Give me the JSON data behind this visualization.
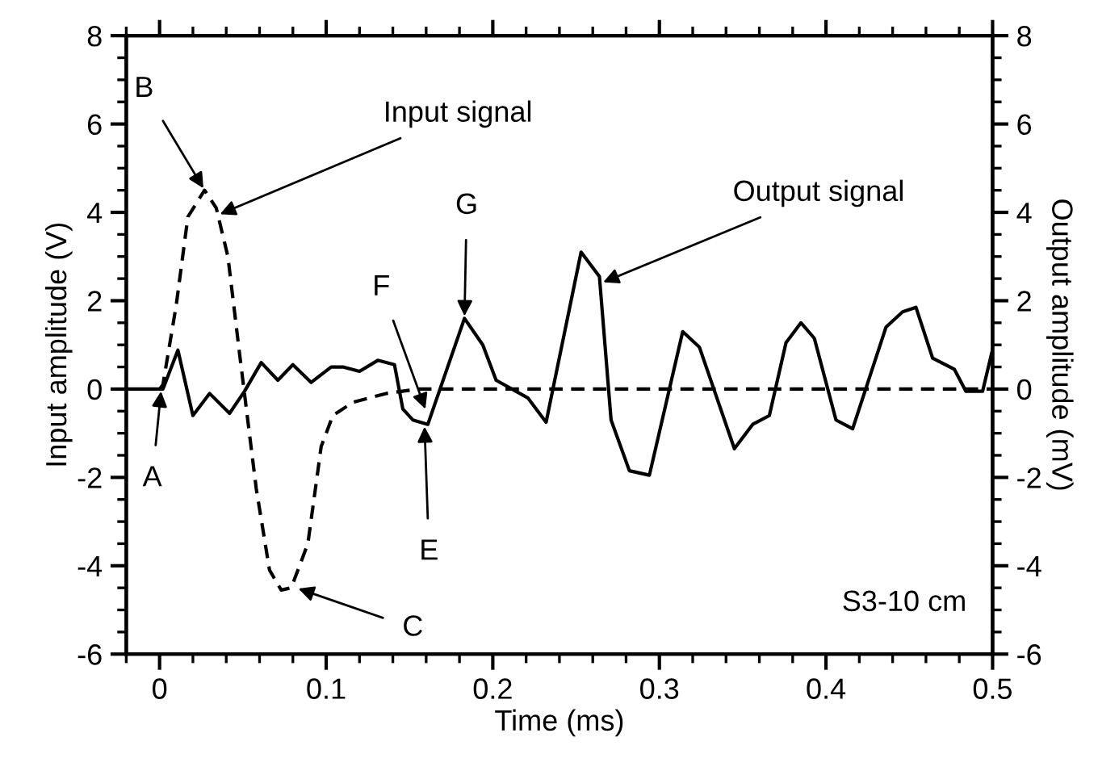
{
  "chart_data": {
    "type": "line",
    "xlabel": "Time (ms)",
    "ylabel": "Input amplitude (V)",
    "y2label": "Output amplitude (mV)",
    "xlim": [
      -0.02,
      0.5
    ],
    "xticks": [
      0,
      0.1,
      0.2,
      0.3,
      0.4,
      0.5
    ],
    "ylim": [
      -6,
      8
    ],
    "yticks": [
      -6,
      -4,
      -2,
      0,
      2,
      4,
      6,
      8
    ],
    "y2lim": [
      -6,
      8
    ],
    "y2ticks": [
      -6,
      -4,
      -2,
      0,
      2,
      4,
      6,
      8
    ],
    "grid": false,
    "legend": false,
    "marker": "none",
    "series": [
      {
        "color": "#000000",
        "line_style": "dashed",
        "x": [
          -0.0,
          0.002,
          0.01,
          0.017,
          0.027,
          0.034,
          0.041,
          0.048,
          0.058,
          0.066,
          0.073,
          0.079,
          0.089,
          0.097,
          0.104,
          0.116,
          0.136,
          0.155,
          0.5
        ],
        "values": [
          0,
          0.1,
          1.9,
          3.9,
          4.5,
          4.1,
          3.0,
          0.8,
          -2.25,
          -4.1,
          -4.55,
          -4.5,
          -3.5,
          -1.3,
          -0.6,
          -0.3,
          -0.1,
          0,
          0
        ]
      },
      {
        "color": "#000000",
        "line_style": "solid",
        "axis": "y2",
        "x": [
          -0.02,
          0.002,
          0.011,
          0.02,
          0.03,
          0.042,
          0.051,
          0.061,
          0.071,
          0.08,
          0.091,
          0.103,
          0.11,
          0.12,
          0.131,
          0.141,
          0.146,
          0.152,
          0.161,
          0.183,
          0.194,
          0.202,
          0.221,
          0.232,
          0.253,
          0.264,
          0.271,
          0.282,
          0.294,
          0.314,
          0.324,
          0.345,
          0.356,
          0.366,
          0.376,
          0.385,
          0.393,
          0.406,
          0.416,
          0.436,
          0.446,
          0.454,
          0.464,
          0.477,
          0.484,
          0.494,
          0.5
        ],
        "values": [
          0,
          0,
          0.88,
          -0.6,
          -0.1,
          -0.55,
          -0.05,
          0.6,
          0.2,
          0.55,
          0.15,
          0.5,
          0.5,
          0.4,
          0.65,
          0.55,
          -0.45,
          -0.7,
          -0.8,
          1.6,
          1.0,
          0.2,
          -0.2,
          -0.75,
          3.1,
          2.55,
          -0.7,
          -1.85,
          -1.95,
          1.3,
          0.95,
          -1.35,
          -0.8,
          -0.6,
          1.05,
          1.5,
          1.15,
          -0.7,
          -0.9,
          1.4,
          1.75,
          1.85,
          0.7,
          0.45,
          -0.05,
          -0.05,
          0.9
        ]
      }
    ],
    "annotations": [
      {
        "text": "A",
        "x": 0.001,
        "y": 0
      },
      {
        "text": "B",
        "x": 0.027,
        "y": 4.5
      },
      {
        "text": "C",
        "x": 0.082,
        "y": -4.5
      },
      {
        "text": "E",
        "x": 0.159,
        "y": -0.8
      },
      {
        "text": "F",
        "x": 0.16,
        "y": -0.5
      },
      {
        "text": "G",
        "x": 0.183,
        "y": 1.6
      },
      {
        "text": "Input signal",
        "x": 0.035,
        "y": 3.94
      },
      {
        "text": "Output signal",
        "x": 0.265,
        "y": 2.4
      },
      "S3-10 cm"
    ]
  }
}
